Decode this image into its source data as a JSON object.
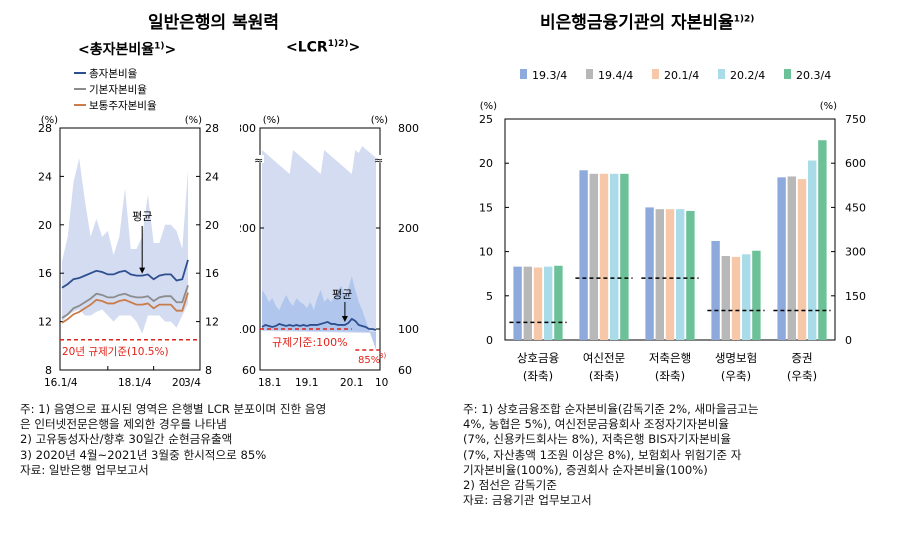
{
  "left_title": "일반은행의 복원력",
  "right_title": "비은행금융기관의 자본비율",
  "right_title_sup": "1)2)",
  "chart_data": [
    {
      "type": "line",
      "title": "<총자본비율",
      "title_sup": "1)",
      "title_close": ">",
      "unit_left": "(%)",
      "unit_right": "(%)",
      "ylim": [
        8,
        28
      ],
      "yticks": [
        "8",
        "12",
        "16",
        "20",
        "24",
        "28"
      ],
      "xtick_labels": [
        "16.1/4",
        "18.1/4",
        "20",
        "3/4"
      ],
      "x": [
        "16.1/4",
        "16.2/4",
        "16.3/4",
        "16.4/4",
        "17.1/4",
        "17.2/4",
        "17.3/4",
        "17.4/4",
        "18.1/4",
        "18.2/4",
        "18.3/4",
        "18.4/4",
        "19.1/4",
        "19.2/4",
        "19.3/4",
        "19.4/4",
        "20.1/4",
        "20.2/4",
        "20.3/4",
        "20.4/4",
        "21.1/4",
        "21.2/4",
        "21.3/4"
      ],
      "series": [
        {
          "name": "총자본비율",
          "color": "#2e4f8f",
          "values": [
            14.8,
            15.1,
            15.5,
            15.6,
            15.8,
            16.0,
            16.2,
            16.1,
            15.9,
            15.9,
            16.1,
            16.2,
            15.9,
            15.8,
            15.8,
            15.9,
            15.5,
            15.8,
            15.9,
            15.9,
            15.4,
            15.5,
            17.1
          ]
        },
        {
          "name": "기본자본비율",
          "color": "#8c8c8c",
          "values": [
            12.3,
            12.6,
            13.1,
            13.3,
            13.6,
            13.9,
            14.3,
            14.2,
            14.0,
            14.0,
            14.2,
            14.3,
            14.1,
            14.0,
            14.0,
            14.1,
            13.7,
            14.0,
            14.1,
            14.1,
            13.6,
            13.6,
            15.0
          ]
        },
        {
          "name": "보통주자본비율",
          "color": "#c97d4a",
          "values": [
            11.9,
            12.2,
            12.6,
            12.8,
            13.1,
            13.4,
            13.8,
            13.7,
            13.5,
            13.5,
            13.7,
            13.8,
            13.6,
            13.4,
            13.4,
            13.5,
            13.1,
            13.4,
            13.4,
            13.4,
            12.9,
            12.9,
            14.4
          ]
        }
      ],
      "band_high": [
        17.0,
        19.0,
        23.5,
        25.5,
        22.0,
        19.0,
        20.5,
        19.0,
        19.5,
        17.5,
        19.0,
        23.0,
        18.0,
        18.0,
        19.0,
        22.5,
        18.5,
        18.5,
        20.0,
        20.0,
        19.5,
        18.0,
        24.5
      ],
      "band_low": [
        12.0,
        12.5,
        12.8,
        13.0,
        12.5,
        12.5,
        12.8,
        13.0,
        12.5,
        12.0,
        12.5,
        12.5,
        12.5,
        12.0,
        11.0,
        12.5,
        12.5,
        12.5,
        12.0,
        12.0,
        11.5,
        12.5,
        13.5
      ],
      "band_color": "#d4dcf2",
      "regulation": {
        "value": 10.5,
        "label": "20년 규제기준(10.5%)",
        "color": "#e0231a"
      },
      "annotation": "평균",
      "annotation_x": "19.3/4"
    },
    {
      "type": "line",
      "title": "<LCR",
      "title_sup": "1)2)",
      "title_close": ">",
      "unit_left": "(%)",
      "unit_right": "(%)",
      "yticks": [
        "60",
        "100",
        "200",
        "800"
      ],
      "break_mark": "≈",
      "xtick_labels": [
        "18.1",
        "19.1",
        "20.1",
        "10"
      ],
      "x": [
        "18.1",
        "18.2",
        "18.3",
        "18.4",
        "18.5",
        "18.6",
        "18.7",
        "18.8",
        "18.9",
        "18.10",
        "18.11",
        "18.12",
        "19.1",
        "19.2",
        "19.3",
        "19.4",
        "19.5",
        "19.6",
        "19.7",
        "19.8",
        "19.9",
        "19.10",
        "19.11",
        "19.12",
        "20.1",
        "20.2",
        "20.3",
        "20.4",
        "20.5",
        "20.6",
        "20.7",
        "20.8",
        "20.9",
        "20.10"
      ],
      "series": [
        {
          "name": "LCR 평균",
          "color": "#2e4f8f",
          "values": [
            102,
            104,
            103,
            102,
            103,
            105,
            104,
            103,
            104,
            103,
            104,
            103,
            104,
            103,
            104,
            104,
            104,
            105,
            106,
            107,
            105,
            105,
            104,
            104,
            104,
            106,
            110,
            108,
            104,
            103,
            102,
            100,
            100,
            99
          ]
        }
      ],
      "regulation": [
        {
          "value": 100,
          "label": "규제기준:100%",
          "color": "#e0231a"
        },
        {
          "value": 85,
          "label": "85%",
          "label_sup": "3)",
          "color": "#e0231a"
        }
      ],
      "band_color": "#d4dcf2",
      "annotation": "평균"
    },
    {
      "type": "bar",
      "unit_left": "(%)",
      "unit_right": "(%)",
      "ylim_left": [
        0,
        25
      ],
      "ylim_right": [
        0,
        750
      ],
      "yticks_left": [
        "0",
        "5",
        "10",
        "15",
        "20",
        "25"
      ],
      "yticks_right": [
        "0",
        "150",
        "300",
        "450",
        "600",
        "750"
      ],
      "categories": [
        "상호금융",
        "여신전문",
        "저축은행",
        "생명보험",
        "증권"
      ],
      "category_axis": [
        "(좌축)",
        "(좌축)",
        "(좌축)",
        "(우축)",
        "(우축)"
      ],
      "series": [
        {
          "name": "19.3/4",
          "color": "#8eaadc",
          "values": [
            8.3,
            19.2,
            15.0,
            336,
            552
          ]
        },
        {
          "name": "19.4/4",
          "color": "#b8b8b8",
          "values": [
            8.3,
            18.8,
            14.8,
            285,
            555
          ]
        },
        {
          "name": "20.1/4",
          "color": "#f6c7a8",
          "values": [
            8.2,
            18.8,
            14.8,
            282,
            546
          ]
        },
        {
          "name": "20.2/4",
          "color": "#a9dbe8",
          "values": [
            8.3,
            18.8,
            14.8,
            291,
            609
          ]
        },
        {
          "name": "20.3/4",
          "color": "#6cc198",
          "values": [
            8.4,
            18.8,
            14.6,
            303,
            678
          ]
        }
      ],
      "regulation": [
        2,
        7,
        7,
        100,
        100
      ]
    }
  ],
  "left_notes": [
    "주:  1) 음영으로 표시된 영역은 은행별 LCR 분포이며 진한 음영",
    "          은 인터넷전문은행을 제외한 경우를 나타냄",
    "      2) 고유동성자산/향후 30일간 순현금유출액",
    "      3) 2020년 4월~2021년 3월중 한시적으로 85%",
    "자료: 일반은행 업무보고서"
  ],
  "right_notes": [
    "주:  1) 상호금융조합  순자본비율(감독기준  2%,  새마을금고는",
    "          4%,  농협은  5%),  여신전문금융회사  조정자기자본비율",
    "          (7%,  신용카드회사는  8%),  저축은행  BIS자기자본비율",
    "          (7%,  자산총액  1조원  이상은  8%),  보험회사  위험기준  자",
    "          기자본비율(100%), 증권회사 순자본비율(100%)",
    "      2) 점선은 감독기준",
    "자료: 금융기관 업무보고서"
  ]
}
